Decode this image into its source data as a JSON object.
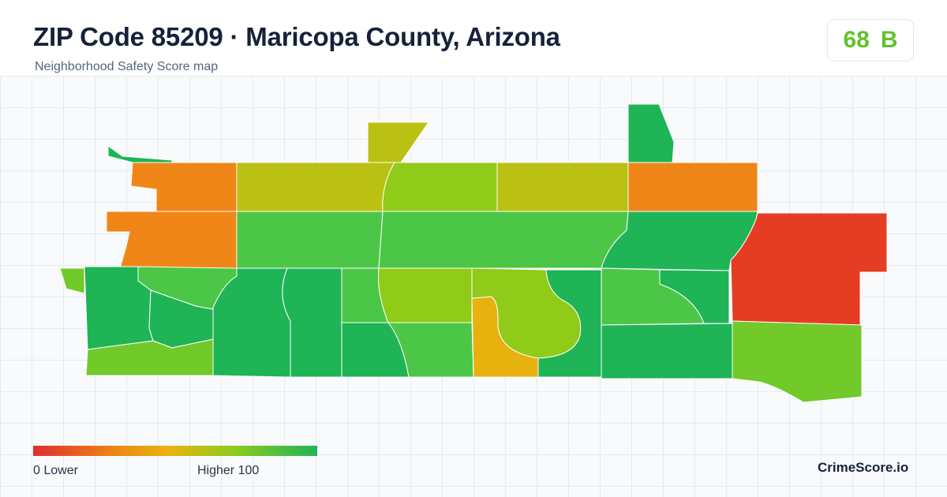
{
  "header": {
    "title": "ZIP Code 85209 · Maricopa County, Arizona",
    "subtitle": "Neighborhood Safety Score map"
  },
  "score": {
    "value": "68",
    "grade": "B",
    "color": "#62c22d"
  },
  "legend": {
    "low_label": "0  Lower",
    "high_label": "Higher  100",
    "scale_min": 0,
    "scale_max": 100,
    "colors": [
      "#e02e2e",
      "#ee8a14",
      "#e8b40e",
      "#8fca1c",
      "#1eb556"
    ]
  },
  "brand": "CrimeScore.io",
  "map_palette": {
    "red": "#e43d24",
    "orange": "#f08618",
    "amber": "#e8b20e",
    "olive": "#bbc112",
    "yellow_green": "#8fcb18",
    "light_green": "#72c92a",
    "green": "#4cc646",
    "dark_green": "#1fb456"
  }
}
